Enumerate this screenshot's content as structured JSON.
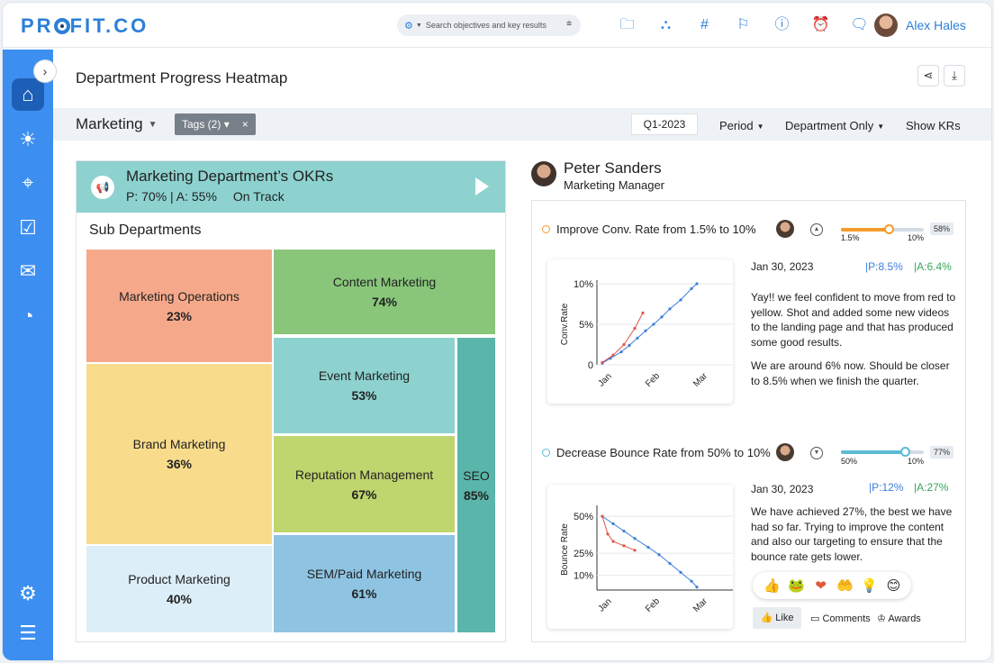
{
  "app": {
    "logo": "PROFIT.CO",
    "logo_pre": "PR",
    "logo_post": "FIT",
    "logo_suffix": ".CO",
    "search_placeholder": "Search objectives and key results",
    "user_name": "Alex Hales",
    "colors": {
      "brand": "#2b7fd9",
      "sidebar": "#3c8ff0",
      "sidebar_active": "#1d5fb6"
    }
  },
  "topbar_icons": [
    "folder-icon",
    "hierarchy-icon",
    "hashtag-icon",
    "flag-icon",
    "help-icon",
    "alarm-icon",
    "chat-icon"
  ],
  "sidebar_icons": [
    "home-icon",
    "bulb-icon",
    "target-icon",
    "calendar-check-icon",
    "message-icon",
    "gauge-icon",
    "settings-icon",
    "sliders-icon"
  ],
  "page": {
    "title": "Department Progress Heatmap"
  },
  "filters": {
    "department": "Marketing",
    "tags": "Tags (2)",
    "tags_close": "×",
    "quarter": "Q1-2023",
    "period": "Period",
    "dept_only": "Department Only",
    "show_krs": "Show KRs"
  },
  "okr": {
    "title": "Marketing Department’s OKRs",
    "progress": "P: 70% | A: 55%",
    "status": "On Track",
    "sub_title": "Sub Departments",
    "tiles": [
      {
        "name": "Marketing Operations",
        "pct": "23%",
        "color": "#f5a98a"
      },
      {
        "name": "Content Marketing",
        "pct": "74%",
        "color": "#89c67a"
      },
      {
        "name": "Event Marketing",
        "pct": "53%",
        "color": "#8dd2cf"
      },
      {
        "name": "SEO",
        "pct": "85%",
        "color": "#5ab5aa"
      },
      {
        "name": "Brand Marketing",
        "pct": "36%",
        "color": "#f8dc8b"
      },
      {
        "name": "Reputation Management",
        "pct": "67%",
        "color": "#bfd56e"
      },
      {
        "name": "Product Marketing",
        "pct": "40%",
        "color": "#dceef8"
      },
      {
        "name": "SEM/Paid Marketing",
        "pct": "61%",
        "color": "#8ec3e2"
      }
    ]
  },
  "person": {
    "name": "Peter Sanders",
    "role": "Marketing Manager"
  },
  "krs": [
    {
      "title": "Improve  Conv. Rate from 1.5% to 10%",
      "start": "1.5%",
      "target": "10%",
      "progress": "58%",
      "progress_value": 0.58,
      "color": "#f59b2a",
      "comment_date": "Jan 30, 2023",
      "p": "|P:8.5%",
      "a": "|A:6.4%",
      "comment_1": "Yay!! we feel confident to move from red to yellow. Shot and added some new videos to the landing page and that has produced some good results.",
      "comment_2": "We are around 6% now. Should be closer to 8.5% when we finish the quarter."
    },
    {
      "title": "Decrease Bounce Rate from 50% to 10%",
      "start": "50%",
      "target": "10%",
      "progress": "77%",
      "progress_value": 0.77,
      "color": "#5bbcd6",
      "comment_date": "Jan 30, 2023",
      "p": "|P:12%",
      "a": "|A:27%",
      "comment_1": "We have achieved 27%, the best we have had so far. Trying to improve the content and also our targeting to ensure that the bounce rate gets lower."
    }
  ],
  "chart_data": [
    {
      "type": "line",
      "ylabel": "Conv.Rate",
      "x_ticks": [
        "Jan",
        "Feb",
        "Mar"
      ],
      "y_ticks": [
        "0",
        "5%",
        "10%"
      ],
      "ylim": [
        0,
        10
      ],
      "series": [
        {
          "color": "#3d7fd9",
          "x": [
            0.1,
            0.25,
            0.45,
            0.6,
            0.75,
            0.9,
            1.05,
            1.2,
            1.35,
            1.55,
            1.75,
            1.85
          ],
          "y": [
            0.2,
            0.8,
            1.6,
            2.4,
            3.3,
            4.2,
            5.0,
            5.9,
            6.9,
            8.0,
            9.4,
            10.0
          ]
        },
        {
          "color": "#e0554a",
          "x": [
            0.1,
            0.3,
            0.5,
            0.7,
            0.85
          ],
          "y": [
            0.3,
            1.2,
            2.5,
            4.5,
            6.4
          ]
        }
      ]
    },
    {
      "type": "line",
      "ylabel": "Bounce Rate",
      "x_ticks": [
        "Jan",
        "Feb",
        "Mar"
      ],
      "y_ticks": [
        "10%",
        "25%",
        "50%"
      ],
      "ylim": [
        0,
        55
      ],
      "series": [
        {
          "color": "#3d7fd9",
          "x": [
            0.1,
            0.3,
            0.5,
            0.7,
            0.95,
            1.15,
            1.35,
            1.55,
            1.75,
            1.85
          ],
          "y": [
            50,
            45,
            40,
            35,
            29,
            24,
            18,
            12,
            6,
            2
          ]
        },
        {
          "color": "#e0554a",
          "x": [
            0.1,
            0.2,
            0.3,
            0.5,
            0.7
          ],
          "y": [
            50,
            38,
            33,
            30,
            27
          ]
        }
      ]
    }
  ],
  "reactions": [
    "👍",
    "🐸",
    "❤",
    "🤲",
    "💡",
    "😊"
  ],
  "actions": {
    "like": "Like",
    "comments": "Comments",
    "awards": "Awards"
  }
}
